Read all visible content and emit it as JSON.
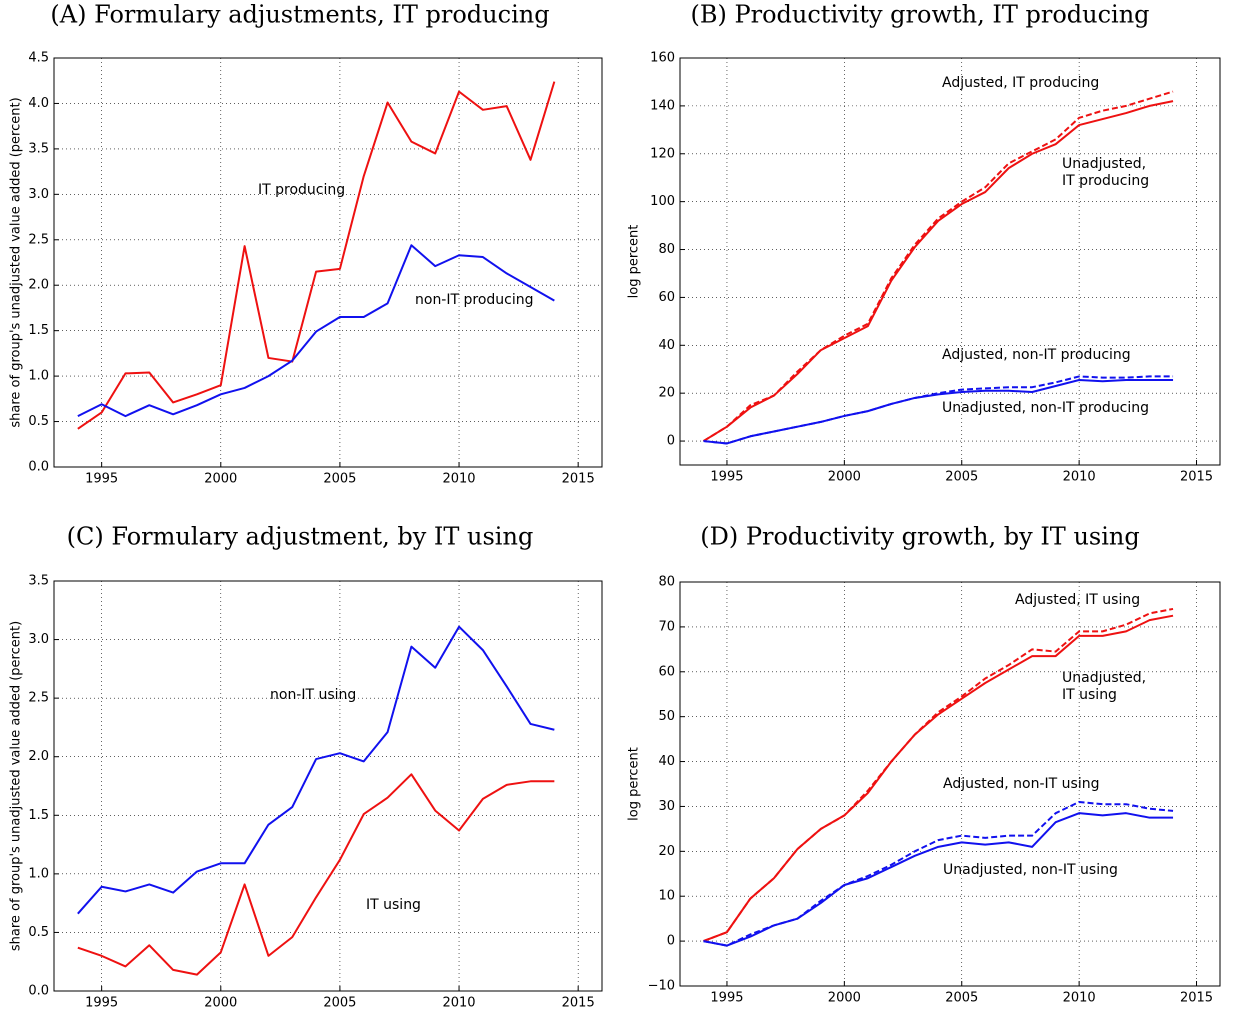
{
  "chart_data": [
    {
      "type": "line",
      "title": "(A) Formulary adjustments, IT producing",
      "ylabel": "share of group's unadjusted value added (percent)",
      "x": [
        1994,
        1995,
        1996,
        1997,
        1998,
        1999,
        2000,
        2001,
        2002,
        2003,
        2004,
        2005,
        2006,
        2007,
        2008,
        2009,
        2010,
        2011,
        2012,
        2013,
        2014
      ],
      "xlim": [
        1993,
        2016
      ],
      "xticks": [
        1995,
        2000,
        2005,
        2010,
        2015
      ],
      "ylim": [
        0,
        4.5
      ],
      "yticks": [
        {
          "value": 0,
          "label": "0.0"
        },
        {
          "value": 0.5,
          "label": "0.5"
        },
        {
          "value": 1,
          "label": "1.0"
        },
        {
          "value": 1.5,
          "label": "1.5"
        },
        {
          "value": 2,
          "label": "2.0"
        },
        {
          "value": 2.5,
          "label": "2.5"
        },
        {
          "value": 3,
          "label": "3.0"
        },
        {
          "value": 3.5,
          "label": "3.5"
        },
        {
          "value": 4,
          "label": "4.0"
        },
        {
          "value": 4.5,
          "label": "4.5"
        }
      ],
      "grid": true,
      "series": [
        {
          "color": "#ee1111",
          "style": "solid",
          "values": [
            0.42,
            0.6,
            1.03,
            1.04,
            0.71,
            0.8,
            0.9,
            2.43,
            1.2,
            1.16,
            2.15,
            2.18,
            3.2,
            4.01,
            3.58,
            3.45,
            4.13,
            3.93,
            3.97,
            3.38,
            4.24
          ]
        },
        {
          "color": "#1111ee",
          "style": "solid",
          "values": [
            0.56,
            0.69,
            0.56,
            0.68,
            0.58,
            0.68,
            0.8,
            0.87,
            1.0,
            1.17,
            1.49,
            1.65,
            1.65,
            1.8,
            2.44,
            2.21,
            2.33,
            2.31,
            2.13,
            1.98,
            1.83
          ]
        }
      ],
      "annotations": [
        [
          "IT producing"
        ],
        [
          "non-IT producing"
        ]
      ]
    },
    {
      "type": "line",
      "title": "(B) Productivity growth, IT producing",
      "ylabel": "log percent",
      "x": [
        1994,
        1995,
        1996,
        1997,
        1998,
        1999,
        2000,
        2001,
        2002,
        2003,
        2004,
        2005,
        2006,
        2007,
        2008,
        2009,
        2010,
        2011,
        2012,
        2013,
        2014
      ],
      "xlim": [
        1993,
        2016
      ],
      "xticks": [
        1995,
        2000,
        2005,
        2010,
        2015
      ],
      "ylim": [
        -10,
        160
      ],
      "yticks": [
        0,
        20,
        40,
        60,
        80,
        100,
        120,
        140,
        160
      ],
      "grid": true,
      "series": [
        {
          "color": "#ee1111",
          "style": "dashed",
          "values": [
            0,
            6,
            15,
            19,
            29,
            38,
            44,
            49,
            68,
            82,
            93,
            100,
            106,
            116,
            121,
            126,
            135,
            138,
            140,
            143,
            146
          ]
        },
        {
          "color": "#ee1111",
          "style": "solid",
          "values": [
            0,
            6,
            14,
            19,
            28,
            38,
            43,
            48,
            67,
            81,
            92,
            99,
            104,
            114,
            120,
            124,
            132,
            134.5,
            137,
            140,
            142
          ]
        },
        {
          "color": "#1111ee",
          "style": "dashed",
          "values": [
            0,
            -1,
            2,
            4,
            6,
            8,
            10.5,
            12.5,
            15.5,
            18,
            20,
            21.5,
            22,
            22.5,
            22.5,
            24.5,
            27,
            26.5,
            26.5,
            27,
            27
          ]
        },
        {
          "color": "#1111ee",
          "style": "solid",
          "values": [
            0,
            -1,
            2,
            4,
            6,
            8,
            10.5,
            12.5,
            15.5,
            18,
            19.5,
            20.5,
            21,
            21,
            20.5,
            23,
            25.5,
            25,
            25.5,
            25.5,
            25.5
          ]
        }
      ],
      "annotations": [
        [
          "Adjusted, IT producing"
        ],
        [
          "Unadjusted,",
          "IT producing"
        ],
        [
          "Adjusted, non-IT producing"
        ],
        [
          "Unadjusted, non-IT producing"
        ]
      ]
    },
    {
      "type": "line",
      "title": "(C) Formulary adjustment, by IT using",
      "ylabel": "share of group's unadjusted value added (percent)",
      "x": [
        1994,
        1995,
        1996,
        1997,
        1998,
        1999,
        2000,
        2001,
        2002,
        2003,
        2004,
        2005,
        2006,
        2007,
        2008,
        2009,
        2010,
        2011,
        2012,
        2013,
        2014
      ],
      "xlim": [
        1993,
        2016
      ],
      "xticks": [
        1995,
        2000,
        2005,
        2010,
        2015
      ],
      "ylim": [
        0,
        3.5
      ],
      "yticks": [
        {
          "value": 0,
          "label": "0.0"
        },
        {
          "value": 0.5,
          "label": "0.5"
        },
        {
          "value": 1,
          "label": "1.0"
        },
        {
          "value": 1.5,
          "label": "1.5"
        },
        {
          "value": 2,
          "label": "2.0"
        },
        {
          "value": 2.5,
          "label": "2.5"
        },
        {
          "value": 3,
          "label": "3.0"
        },
        {
          "value": 3.5,
          "label": "3.5"
        }
      ],
      "grid": true,
      "series": [
        {
          "color": "#1111ee",
          "style": "solid",
          "values": [
            0.66,
            0.89,
            0.85,
            0.91,
            0.84,
            1.02,
            1.09,
            1.09,
            1.42,
            1.57,
            1.98,
            2.03,
            1.96,
            2.21,
            2.94,
            2.76,
            3.11,
            2.91,
            2.6,
            2.28,
            2.23
          ]
        },
        {
          "color": "#ee1111",
          "style": "solid",
          "values": [
            0.37,
            0.3,
            0.21,
            0.39,
            0.18,
            0.14,
            0.33,
            0.91,
            0.3,
            0.46,
            0.8,
            1.12,
            1.51,
            1.65,
            1.85,
            1.54,
            1.37,
            1.64,
            1.76,
            1.79,
            1.79
          ]
        }
      ],
      "annotations": [
        [
          "non-IT using"
        ],
        [
          "IT using"
        ]
      ]
    },
    {
      "type": "line",
      "title": "(D) Productivity growth, by IT using",
      "ylabel": "log percent",
      "x": [
        1994,
        1995,
        1996,
        1997,
        1998,
        1999,
        2000,
        2001,
        2002,
        2003,
        2004,
        2005,
        2006,
        2007,
        2008,
        2009,
        2010,
        2011,
        2012,
        2013,
        2014
      ],
      "xlim": [
        1993,
        2016
      ],
      "xticks": [
        1995,
        2000,
        2005,
        2010,
        2015
      ],
      "ylim": [
        -10,
        80
      ],
      "yticks": [
        {
          "value": -10,
          "label": "−10"
        },
        0,
        10,
        20,
        30,
        40,
        50,
        60,
        70,
        80
      ],
      "grid": true,
      "series": [
        {
          "color": "#ee1111",
          "style": "dashed",
          "values": [
            0,
            2,
            9.5,
            14,
            20.5,
            25,
            28,
            33.5,
            40,
            46,
            51,
            54.5,
            58.5,
            61.5,
            65,
            64.5,
            69,
            69,
            70.5,
            73,
            74
          ]
        },
        {
          "color": "#ee1111",
          "style": "solid",
          "values": [
            0,
            2,
            9.5,
            14,
            20.5,
            25,
            28,
            33,
            40,
            46,
            50.5,
            54,
            57.5,
            60.5,
            63.5,
            63.5,
            68,
            68,
            69,
            71.5,
            72.5
          ]
        },
        {
          "color": "#1111ee",
          "style": "dashed",
          "values": [
            0,
            -1,
            1.5,
            3.5,
            5,
            9,
            12.5,
            14.5,
            17,
            20,
            22.5,
            23.5,
            23,
            23.5,
            23.5,
            28.5,
            31,
            30.5,
            30.5,
            29.5,
            29
          ]
        },
        {
          "color": "#1111ee",
          "style": "solid",
          "values": [
            0,
            -1,
            1,
            3.5,
            5,
            8.5,
            12.5,
            14,
            16.5,
            19,
            21,
            22,
            21.5,
            22,
            21,
            26.5,
            28.5,
            28,
            28.5,
            27.5,
            27.5
          ]
        }
      ],
      "annotations": [
        [
          "Adjusted, IT using"
        ],
        [
          "Unadjusted,",
          "IT using"
        ],
        [
          "Adjusted, non-IT using"
        ],
        [
          "Unadjusted, non-IT using"
        ]
      ]
    }
  ]
}
